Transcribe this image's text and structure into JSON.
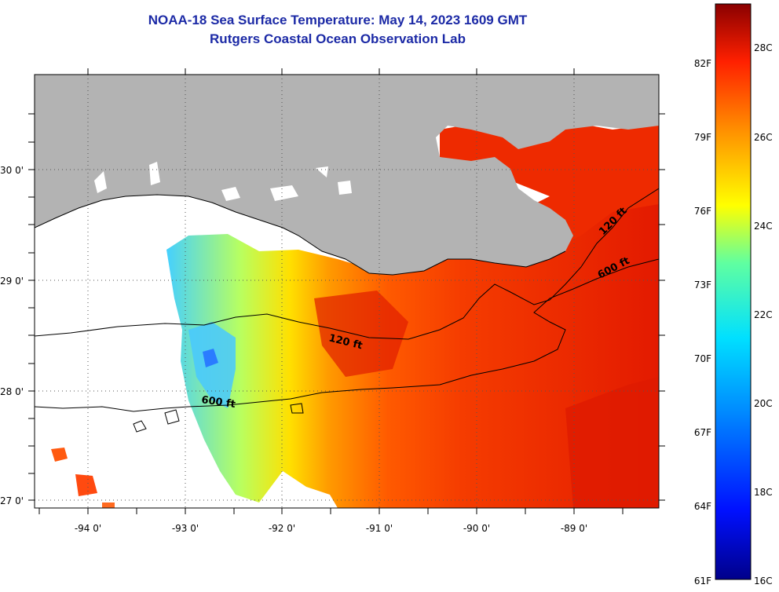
{
  "header": {
    "title": "NOAA-18 Sea Surface Temperature:  May 14, 2023 1609 GMT",
    "subtitle": "Rutgers Coastal Ocean Observation Lab"
  },
  "map": {
    "lat_labels": [
      "30 0'",
      "29 0'",
      "28 0'",
      "27 0'"
    ],
    "lon_labels": [
      "-94 0'",
      "-93 0'",
      "-92 0'",
      "-91 0'",
      "-90 0'",
      "-89 0'"
    ],
    "contour_labels": {
      "inner_120": "120 ft",
      "inner_600": "600 ft",
      "east_120": "120 ft",
      "east_600": "600 ft"
    },
    "colors": {
      "land": "#b3b3b3",
      "no_data": "#ffffff",
      "sst_high": "#e62200",
      "sst_mid": "#ff8000",
      "sst_low": "#40c0ff"
    }
  },
  "colorbar": {
    "f_labels": [
      "82F",
      "79F",
      "76F",
      "73F",
      "70F",
      "67F",
      "64F",
      "61F"
    ],
    "c_labels": [
      "28C",
      "26C",
      "24C",
      "22C",
      "20C",
      "18C",
      "16C"
    ],
    "range_c": [
      16,
      29
    ]
  }
}
